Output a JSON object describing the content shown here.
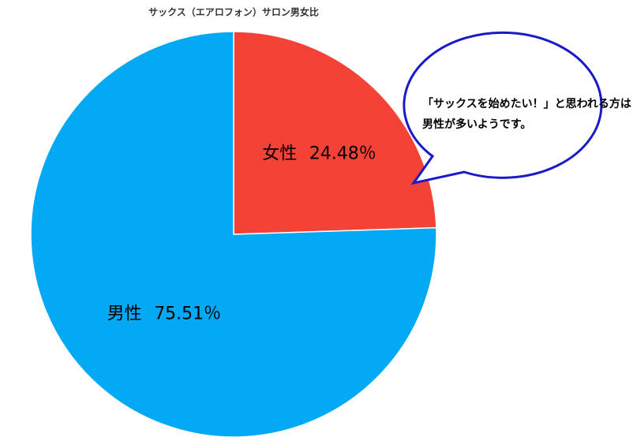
{
  "chart_data": {
    "type": "pie",
    "title": "サックス（エアロフォン）サロン男女比",
    "categories": [
      "女性",
      "男性"
    ],
    "values": [
      24.48,
      75.51
    ],
    "value_labels": [
      "24.48％",
      "75.51％"
    ],
    "colors": [
      "#f44336",
      "#03a9f4"
    ],
    "annotation": [
      "「サックスを始めたい！」と思われる方は",
      "男性が多いようです。"
    ]
  }
}
